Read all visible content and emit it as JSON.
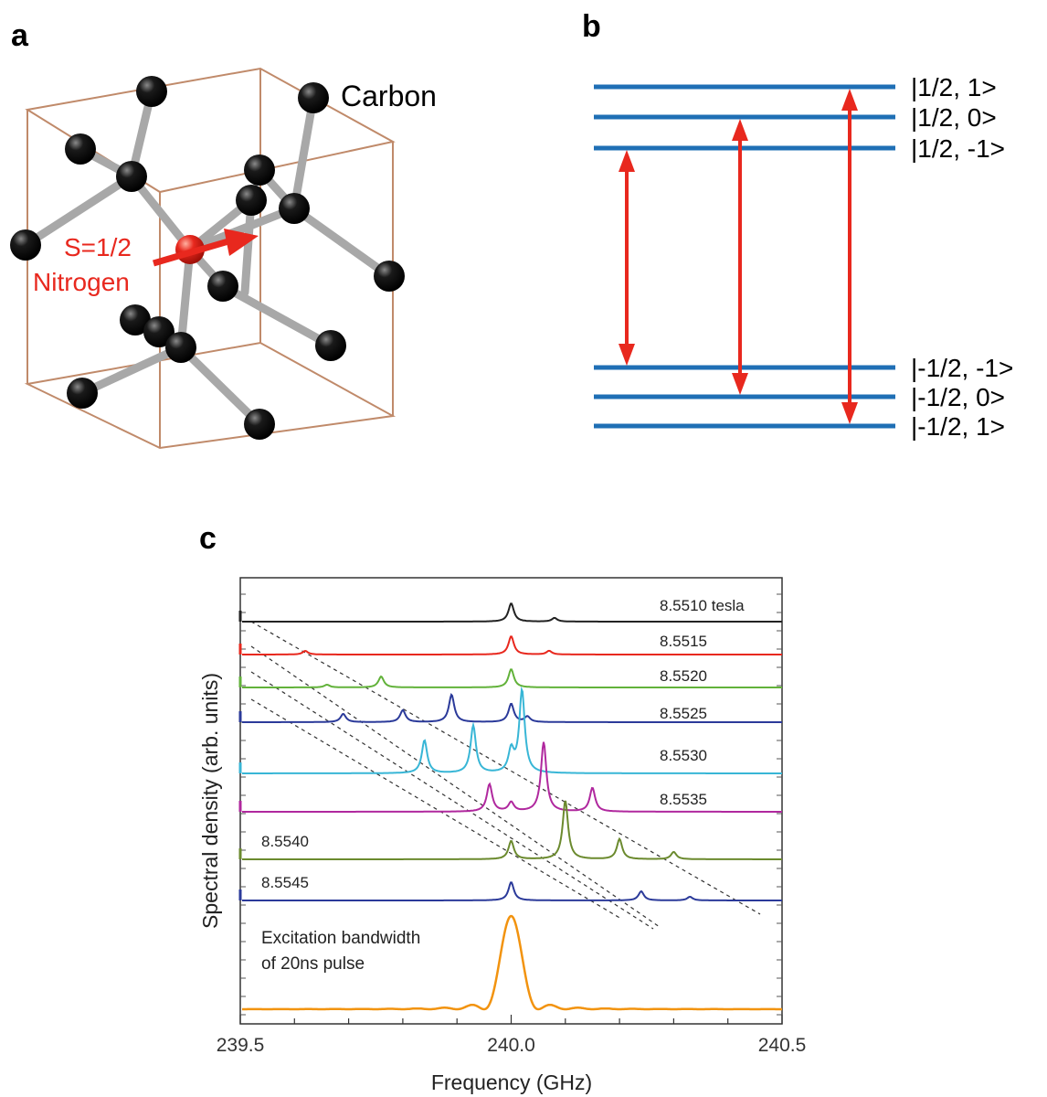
{
  "panels": {
    "a": {
      "letter": "a",
      "carbon_label": "Carbon",
      "spin_label": "S=1/2",
      "nitrogen_label": "Nitrogen",
      "colors": {
        "carbon": "#000000",
        "nitrogen": "#e8281e",
        "bond": "#a0a0a0",
        "cube": "#c08a6a"
      }
    },
    "b": {
      "letter": "b",
      "levels": [
        "|1/2, 1>",
        "|1/2, 0>",
        "|1/2, -1>",
        "|-1/2, -1>",
        "|-1/2, 0>",
        "|-1/2, 1>"
      ],
      "colors": {
        "level": "#1f6fb5",
        "transition": "#e8281e"
      }
    },
    "c": {
      "letter": "c",
      "chart_data": {
        "type": "line",
        "xlabel": "Frequency (GHz)",
        "ylabel": "Spectral density (arb. units)",
        "xlim": [
          239.5,
          240.5
        ],
        "xticks": [
          "239.5",
          "240.0",
          "240.5"
        ],
        "series": [
          {
            "name": "8.5510 tesla",
            "color": "#222222",
            "peaks": [
              [
                240.0,
                1.0
              ],
              [
                240.08,
                0.2
              ]
            ]
          },
          {
            "name": "8.5515",
            "color": "#e8281e",
            "peaks": [
              [
                239.62,
                0.2
              ],
              [
                240.0,
                1.0
              ],
              [
                240.07,
                0.2
              ]
            ]
          },
          {
            "name": "8.5520",
            "color": "#62b23a",
            "peaks": [
              [
                239.66,
                0.15
              ],
              [
                239.76,
                0.6
              ],
              [
                240.0,
                1.0
              ]
            ]
          },
          {
            "name": "8.5525",
            "color": "#2b3a9a",
            "peaks": [
              [
                239.69,
                0.45
              ],
              [
                239.8,
                0.65
              ],
              [
                239.89,
                1.5
              ],
              [
                240.0,
                1.0
              ],
              [
                240.03,
                0.3
              ]
            ]
          },
          {
            "name": "8.5530",
            "color": "#38b6d6",
            "peaks": [
              [
                239.84,
                1.8
              ],
              [
                239.93,
                2.6
              ],
              [
                240.0,
                1.2
              ],
              [
                240.02,
                4.5
              ]
            ]
          },
          {
            "name": "8.5535",
            "color": "#b0289e",
            "peaks": [
              [
                239.96,
                1.5
              ],
              [
                240.0,
                0.5
              ],
              [
                240.06,
                3.8
              ],
              [
                240.15,
                1.3
              ]
            ]
          },
          {
            "name": "8.5540",
            "color": "#6b8a2e",
            "peaks": [
              [
                240.0,
                1.0
              ],
              [
                240.1,
                3.2
              ],
              [
                240.2,
                1.1
              ],
              [
                240.3,
                0.4
              ]
            ]
          },
          {
            "name": "8.5545",
            "color": "#2b3a9a",
            "peaks": [
              [
                240.0,
                1.0
              ],
              [
                240.24,
                0.5
              ],
              [
                240.33,
                0.2
              ]
            ]
          }
        ],
        "excitation": {
          "label_line1": "Excitation bandwidth",
          "label_line2": "of 20ns pulse",
          "color": "#f2930f",
          "center": 240.0,
          "width_ns": 20
        }
      }
    }
  }
}
